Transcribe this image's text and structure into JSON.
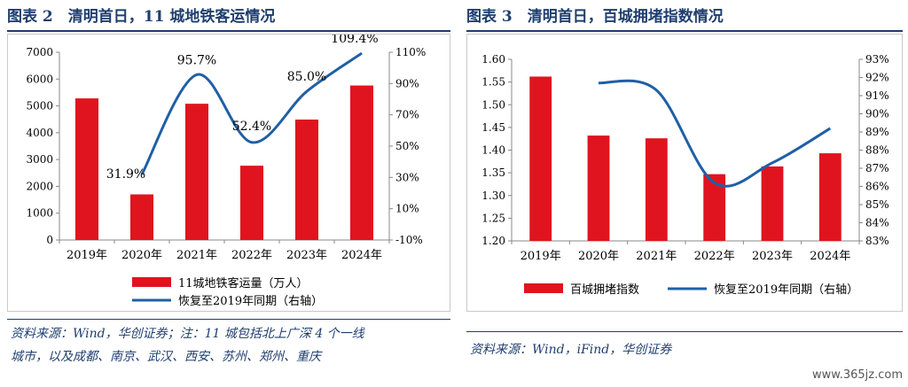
{
  "left": {
    "title": "图表 2　清明首日，11 城地铁客运情况",
    "source_line1": "资料来源：Wind，华创证券；注：11 城包括北上广深 4 个一线",
    "source_line2": "城市，以及成都、南京、武汉、西安、苏州、郑州、重庆"
  },
  "right": {
    "title": "图表 3　清明首日，百城拥堵指数情况",
    "source_line1": "资料来源：Wind，iFind，华创证券"
  },
  "watermark": "www.365jz.com",
  "chart_data": [
    {
      "type": "bar",
      "categories": [
        "2019年",
        "2020年",
        "2021年",
        "2022年",
        "2023年",
        "2024年"
      ],
      "series": [
        {
          "name": "11城地铁客运量（万人）",
          "type": "bar",
          "axis": "left",
          "values": [
            5280,
            1700,
            5080,
            2770,
            4490,
            5760
          ],
          "color": "#e0141e"
        },
        {
          "name": "恢复至2019年同期（右轴）",
          "type": "line",
          "axis": "right",
          "values": [
            null,
            31.9,
            95.7,
            52.4,
            85.0,
            109.4
          ],
          "color": "#1f5fa6"
        }
      ],
      "data_labels": [
        "31.9%",
        "95.7%",
        "52.4%",
        "85.0%",
        "109.4%"
      ],
      "ylim": [
        0,
        7000
      ],
      "yticks": [
        "0",
        "1000",
        "2000",
        "3000",
        "4000",
        "5000",
        "6000",
        "7000"
      ],
      "y2lim": [
        -10,
        110
      ],
      "y2ticks": [
        "-10%",
        "10%",
        "30%",
        "50%",
        "70%",
        "90%",
        "110%"
      ],
      "legend": "bottom"
    },
    {
      "type": "bar",
      "categories": [
        "2019年",
        "2020年",
        "2021年",
        "2022年",
        "2023年",
        "2024年"
      ],
      "series": [
        {
          "name": "百城拥堵指数",
          "type": "bar",
          "axis": "left",
          "values": [
            1.562,
            1.432,
            1.426,
            1.347,
            1.364,
            1.393
          ],
          "color": "#e0141e"
        },
        {
          "name": "恢复至2019年同期（右轴）",
          "type": "line",
          "axis": "right",
          "values": [
            null,
            91.7,
            91.3,
            86.2,
            87.3,
            89.2
          ],
          "color": "#1f5fa6"
        }
      ],
      "ylim": [
        1.2,
        1.6
      ],
      "yticks": [
        "1.20",
        "1.25",
        "1.30",
        "1.35",
        "1.40",
        "1.45",
        "1.50",
        "1.55",
        "1.60"
      ],
      "y2lim": [
        83,
        93
      ],
      "y2ticks": [
        "83%",
        "84%",
        "85%",
        "86%",
        "87%",
        "88%",
        "89%",
        "90%",
        "91%",
        "92%",
        "93%"
      ],
      "legend": "bottom"
    }
  ]
}
